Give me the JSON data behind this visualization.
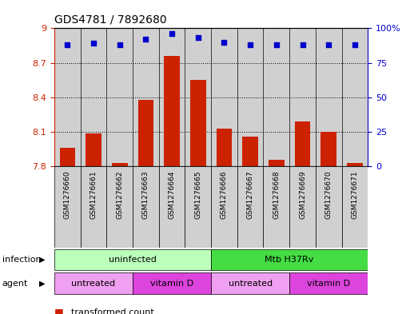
{
  "title": "GDS4781 / 7892680",
  "samples": [
    "GSM1276660",
    "GSM1276661",
    "GSM1276662",
    "GSM1276663",
    "GSM1276664",
    "GSM1276665",
    "GSM1276666",
    "GSM1276667",
    "GSM1276668",
    "GSM1276669",
    "GSM1276670",
    "GSM1276671"
  ],
  "bar_values": [
    7.96,
    8.09,
    7.83,
    8.38,
    8.76,
    8.55,
    8.13,
    8.06,
    7.86,
    8.19,
    8.1,
    7.83
  ],
  "percentile_values": [
    88,
    89,
    88,
    92,
    96,
    93,
    90,
    88,
    88,
    88,
    88,
    88
  ],
  "y_min": 7.8,
  "y_max": 9.0,
  "y_ticks": [
    7.8,
    8.1,
    8.4,
    8.7,
    9.0
  ],
  "y_tick_labels": [
    "7.8",
    "8.1",
    "8.4",
    "8.7",
    "9"
  ],
  "right_y_ticks": [
    0,
    25,
    50,
    75,
    100
  ],
  "right_y_tick_labels": [
    "0",
    "25",
    "50",
    "75",
    "100%"
  ],
  "bar_color": "#cc2200",
  "dot_color": "#0000cc",
  "bar_bg_color": "#d0d0d0",
  "uninfected_color": "#bbffbb",
  "mtb_color": "#44dd44",
  "untreated_color": "#f0a0f0",
  "vitamind_color": "#dd44dd"
}
